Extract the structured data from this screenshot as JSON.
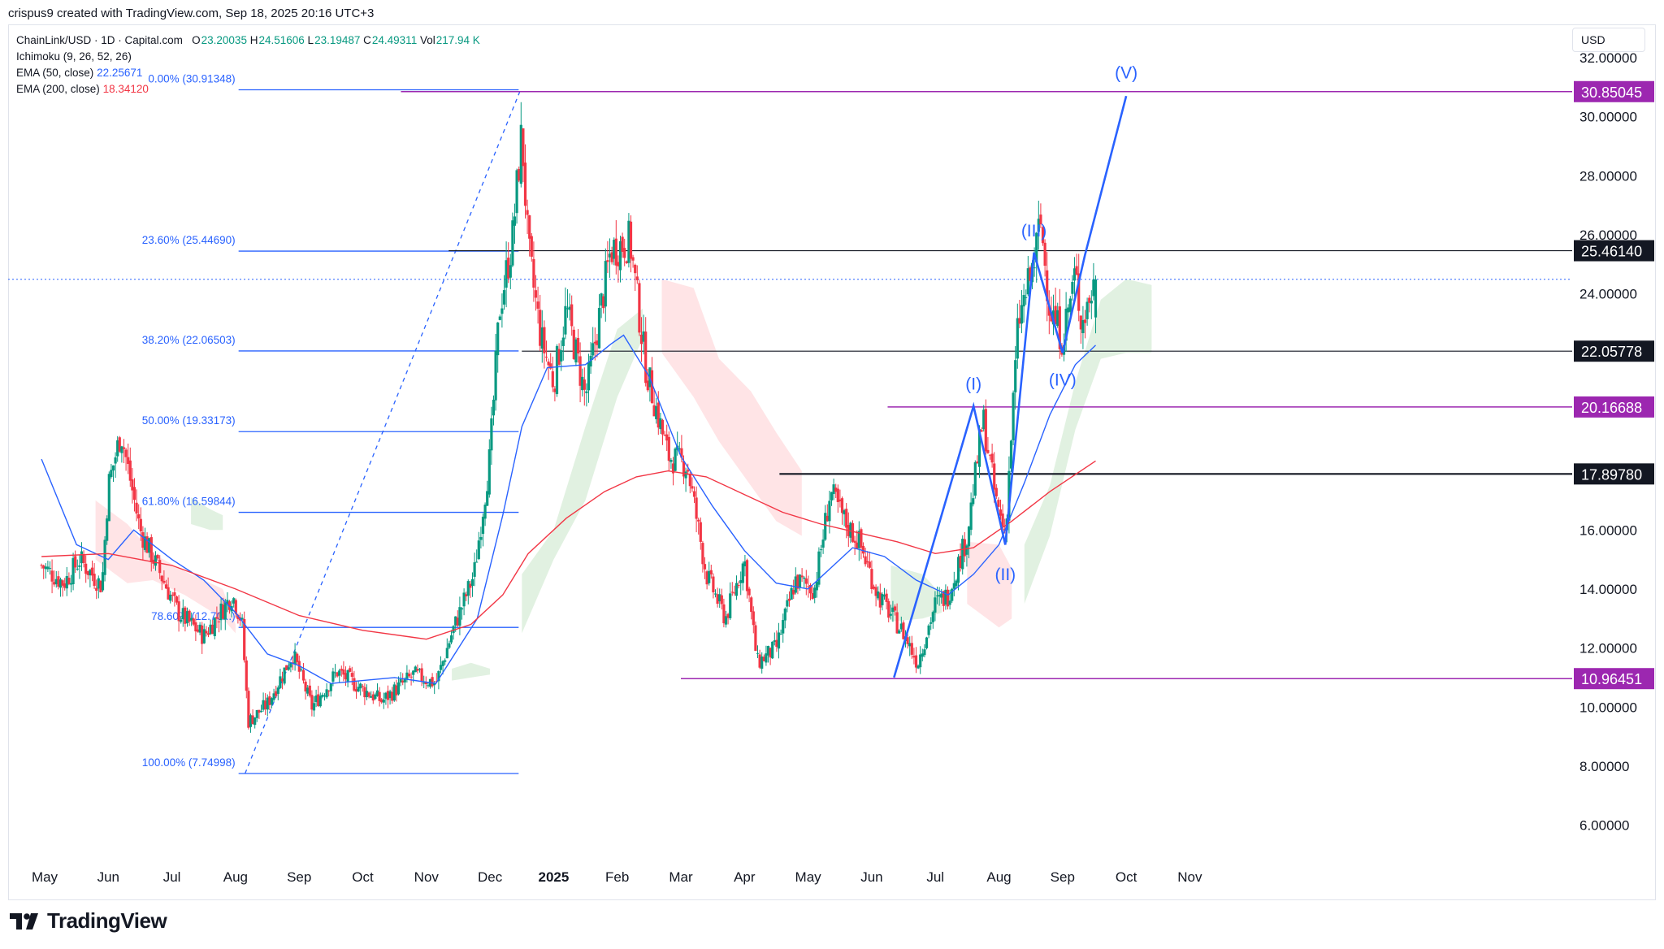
{
  "caption": "crispus9 created with TradingView.com, Sep 18, 2025 20:16 UTC+3",
  "brand": "TradingView",
  "legend": {
    "symbol": "ChainLink/USD · 1D · Capital.com",
    "o_label": "O",
    "o": "23.20035",
    "h_label": "H",
    "h": "24.51606",
    "l_label": "L",
    "l": "23.19487",
    "c_label": "C",
    "c": "24.49311",
    "vol_label": "Vol",
    "vol": "217.94 K",
    "ichimoku": "Ichimoku (9, 26, 52, 26)",
    "ema50_label": "EMA (50, close)",
    "ema50": "22.25671",
    "ema200_label": "EMA (200, close)",
    "ema200": "18.34120"
  },
  "currency": "USD",
  "colors": {
    "up": "#089981",
    "down": "#f23645",
    "ema50": "#2962ff",
    "ema200": "#f23645",
    "fib": "#2962ff",
    "hline": "#131722",
    "support": "#9c27b0",
    "wave": "#2962ff",
    "cloud_bull": "#c8e6c9",
    "cloud_bear": "#ffcdd2"
  },
  "chart_data": {
    "type": "candlestick",
    "instrument": "ChainLink/USD",
    "timeframe": "1D",
    "x_labels": [
      "May",
      "Jun",
      "Jul",
      "Aug",
      "Sep",
      "Oct",
      "Nov",
      "Dec",
      "2025",
      "Feb",
      "Mar",
      "Apr",
      "May",
      "Jun",
      "Jul",
      "Aug",
      "Sep",
      "Oct",
      "Nov"
    ],
    "y_ticks": [
      "32.00000",
      "30.00000",
      "28.00000",
      "26.00000",
      "24.00000",
      "22.00000",
      "20.00000",
      "18.00000",
      "16.00000",
      "14.00000",
      "12.00000",
      "10.00000",
      "8.00000",
      "6.00000"
    ],
    "ylim": [
      5.2,
      33.6
    ],
    "close_path": [
      [
        -0.05,
        14.8
      ],
      [
        0.3,
        14.2
      ],
      [
        0.55,
        15.0
      ],
      [
        0.9,
        14.1
      ],
      [
        1.0,
        17.5
      ],
      [
        1.2,
        19.3
      ],
      [
        1.5,
        16.0
      ],
      [
        1.8,
        14.6
      ],
      [
        2.1,
        13.2
      ],
      [
        2.5,
        12.4
      ],
      [
        2.95,
        13.8
      ],
      [
        3.1,
        12.9
      ],
      [
        3.2,
        9.5
      ],
      [
        3.5,
        10.1
      ],
      [
        3.9,
        11.8
      ],
      [
        4.2,
        10.0
      ],
      [
        4.6,
        11.2
      ],
      [
        5.0,
        10.6
      ],
      [
        5.3,
        10.2
      ],
      [
        5.8,
        11.1
      ],
      [
        6.15,
        10.8
      ],
      [
        6.4,
        12.5
      ],
      [
        6.75,
        14.5
      ],
      [
        7.0,
        18.5
      ],
      [
        7.15,
        23.5
      ],
      [
        7.35,
        25.8
      ],
      [
        7.5,
        29.5
      ],
      [
        7.6,
        25.5
      ],
      [
        7.8,
        22.5
      ],
      [
        8.0,
        21.0
      ],
      [
        8.2,
        23.5
      ],
      [
        8.5,
        20.5
      ],
      [
        8.9,
        25.5
      ],
      [
        9.2,
        25.8
      ],
      [
        9.45,
        21.5
      ],
      [
        9.8,
        18.5
      ],
      [
        10.1,
        18.2
      ],
      [
        10.4,
        14.5
      ],
      [
        10.7,
        13.0
      ],
      [
        11.0,
        15.0
      ],
      [
        11.2,
        11.5
      ],
      [
        11.5,
        12.0
      ],
      [
        11.8,
        14.3
      ],
      [
        12.1,
        14.0
      ],
      [
        12.35,
        17.3
      ],
      [
        12.6,
        16.2
      ],
      [
        12.8,
        15.6
      ],
      [
        13.1,
        13.8
      ],
      [
        13.5,
        12.5
      ],
      [
        13.72,
        11.5
      ],
      [
        14.0,
        13.5
      ],
      [
        14.2,
        13.8
      ],
      [
        14.5,
        15.8
      ],
      [
        14.75,
        19.8
      ],
      [
        14.95,
        17.0
      ],
      [
        15.1,
        15.9
      ],
      [
        15.3,
        23.0
      ],
      [
        15.55,
        25.0
      ],
      [
        15.65,
        26.5
      ],
      [
        15.8,
        23.5
      ],
      [
        16.0,
        22.5
      ],
      [
        16.2,
        24.7
      ],
      [
        16.3,
        23.0
      ],
      [
        16.52,
        24.49
      ]
    ],
    "ema50_path": [
      [
        -0.05,
        18.4
      ],
      [
        0.5,
        15.5
      ],
      [
        1.0,
        15.0
      ],
      [
        1.4,
        16.0
      ],
      [
        2.0,
        15.0
      ],
      [
        2.5,
        14.3
      ],
      [
        3.0,
        13.2
      ],
      [
        3.5,
        11.8
      ],
      [
        4.0,
        11.4
      ],
      [
        4.5,
        10.8
      ],
      [
        5.0,
        10.9
      ],
      [
        5.5,
        11.0
      ],
      [
        6.15,
        10.8
      ],
      [
        6.8,
        13.0
      ],
      [
        7.2,
        16.5
      ],
      [
        7.5,
        19.5
      ],
      [
        7.9,
        21.5
      ],
      [
        8.5,
        21.6
      ],
      [
        8.9,
        22.3
      ],
      [
        9.1,
        22.6
      ],
      [
        9.5,
        21.2
      ],
      [
        10.0,
        18.5
      ],
      [
        10.5,
        16.8
      ],
      [
        11.0,
        15.3
      ],
      [
        11.5,
        14.2
      ],
      [
        12.0,
        14.0
      ],
      [
        12.3,
        14.6
      ],
      [
        12.7,
        15.4
      ],
      [
        13.2,
        15.1
      ],
      [
        13.7,
        14.3
      ],
      [
        14.2,
        13.8
      ],
      [
        14.6,
        14.5
      ],
      [
        15.0,
        15.5
      ],
      [
        15.4,
        17.6
      ],
      [
        15.8,
        19.9
      ],
      [
        16.2,
        21.6
      ],
      [
        16.52,
        22.26
      ]
    ],
    "ema200_path": [
      [
        -0.05,
        15.1
      ],
      [
        1.0,
        15.2
      ],
      [
        2.0,
        14.8
      ],
      [
        3.0,
        14.0
      ],
      [
        4.0,
        13.1
      ],
      [
        5.0,
        12.6
      ],
      [
        6.0,
        12.3
      ],
      [
        6.7,
        12.8
      ],
      [
        7.2,
        13.8
      ],
      [
        7.6,
        15.2
      ],
      [
        8.2,
        16.4
      ],
      [
        8.8,
        17.3
      ],
      [
        9.3,
        17.8
      ],
      [
        9.8,
        18.0
      ],
      [
        10.4,
        17.8
      ],
      [
        11.0,
        17.2
      ],
      [
        11.6,
        16.6
      ],
      [
        12.2,
        16.2
      ],
      [
        12.8,
        15.9
      ],
      [
        13.4,
        15.6
      ],
      [
        14.0,
        15.2
      ],
      [
        14.6,
        15.4
      ],
      [
        15.2,
        16.3
      ],
      [
        15.8,
        17.3
      ],
      [
        16.52,
        18.34
      ]
    ],
    "fibonacci": [
      {
        "label": "0.00% (30.91348)",
        "value": 30.91348
      },
      {
        "label": "23.60% (25.44690)",
        "value": 25.4469
      },
      {
        "label": "38.20% (22.06503)",
        "value": 22.06503
      },
      {
        "label": "50.00% (19.33173)",
        "value": 19.33173
      },
      {
        "label": "61.80% (16.59844)",
        "value": 16.59844
      },
      {
        "label": "78.60% (12.70...)",
        "value": 12.7
      },
      {
        "label": "100.00% (7.74998)",
        "value": 7.74998
      }
    ],
    "fib_x_range": [
      3.15,
      7.45
    ],
    "black_levels": [
      {
        "label": "25.46140",
        "value": 25.4614,
        "x_start": 6.35
      },
      {
        "label": "22.05778",
        "value": 22.05778,
        "x_start": 7.5
      },
      {
        "label": "17.89780",
        "value": 17.8978,
        "x_start": 11.55
      }
    ],
    "purple_levels": [
      {
        "label": "30.85045",
        "value": 30.85045,
        "x_start": 5.6
      },
      {
        "label": "20.16688",
        "value": 20.16688,
        "x_start": 13.25
      },
      {
        "label": "10.96451",
        "value": 10.96451,
        "x_start": 10.0
      }
    ],
    "current_price_line": 24.49311,
    "elliott_wave": {
      "points": [
        [
          13.35,
          11.0
        ],
        [
          14.6,
          20.2
        ],
        [
          15.1,
          15.5
        ],
        [
          15.55,
          25.4
        ],
        [
          16.0,
          22.0
        ],
        [
          16.35,
          25.3
        ],
        [
          17.0,
          30.7
        ]
      ],
      "labels": [
        {
          "text": "(I)",
          "x": 14.6,
          "y": 20.75
        },
        {
          "text": "(II)",
          "x": 15.1,
          "y": 14.3
        },
        {
          "text": "(III)",
          "x": 15.55,
          "y": 25.95
        },
        {
          "text": "(IV)",
          "x": 16.0,
          "y": 20.9
        },
        {
          "text": "(V)",
          "x": 17.0,
          "y": 31.3
        }
      ]
    },
    "ichimoku_clouds": [
      {
        "color": "bear",
        "top": [
          [
            0.8,
            17.0
          ],
          [
            1.3,
            16.2
          ],
          [
            1.7,
            15.2
          ],
          [
            2.2,
            14.6
          ],
          [
            2.8,
            14.0
          ],
          [
            3.0,
            12.8
          ]
        ],
        "bottom": [
          [
            0.8,
            15.0
          ],
          [
            1.3,
            14.2
          ],
          [
            1.7,
            14.3
          ],
          [
            2.2,
            13.8
          ],
          [
            2.8,
            13.0
          ],
          [
            3.0,
            12.5
          ]
        ]
      },
      {
        "color": "bull",
        "top": [
          [
            2.3,
            17.1
          ],
          [
            2.6,
            16.7
          ],
          [
            2.8,
            16.5
          ]
        ],
        "bottom": [
          [
            2.3,
            16.2
          ],
          [
            2.6,
            16.0
          ],
          [
            2.8,
            16.0
          ]
        ]
      },
      {
        "color": "bull",
        "top": [
          [
            6.4,
            11.3
          ],
          [
            6.7,
            11.5
          ],
          [
            7.0,
            11.3
          ]
        ],
        "bottom": [
          [
            6.4,
            10.9
          ],
          [
            6.7,
            11.0
          ],
          [
            7.0,
            11.1
          ]
        ]
      },
      {
        "color": "bull",
        "top": [
          [
            7.5,
            14.5
          ],
          [
            8.0,
            16.0
          ],
          [
            8.5,
            19.5
          ],
          [
            9.0,
            22.8
          ],
          [
            9.4,
            23.5
          ]
        ],
        "bottom": [
          [
            7.5,
            12.5
          ],
          [
            8.0,
            15.0
          ],
          [
            8.5,
            17.0
          ],
          [
            9.0,
            20.5
          ],
          [
            9.4,
            22.5
          ]
        ]
      },
      {
        "color": "bear",
        "top": [
          [
            9.7,
            24.5
          ],
          [
            10.2,
            24.2
          ],
          [
            10.6,
            21.8
          ],
          [
            11.1,
            20.7
          ],
          [
            11.5,
            19.3
          ],
          [
            11.9,
            18.0
          ]
        ],
        "bottom": [
          [
            9.7,
            22.0
          ],
          [
            10.2,
            20.5
          ],
          [
            10.6,
            19.0
          ],
          [
            11.1,
            17.5
          ],
          [
            11.5,
            16.3
          ],
          [
            11.9,
            15.8
          ]
        ]
      },
      {
        "color": "bull",
        "top": [
          [
            13.3,
            14.8
          ],
          [
            13.8,
            14.5
          ],
          [
            14.1,
            13.8
          ]
        ],
        "bottom": [
          [
            13.3,
            12.9
          ],
          [
            13.8,
            13.0
          ],
          [
            14.1,
            13.2
          ]
        ]
      },
      {
        "color": "bear",
        "top": [
          [
            14.5,
            15.6
          ],
          [
            15.0,
            15.5
          ],
          [
            15.2,
            14.7
          ]
        ],
        "bottom": [
          [
            14.5,
            13.5
          ],
          [
            15.0,
            12.7
          ],
          [
            15.2,
            13.0
          ]
        ]
      },
      {
        "color": "bull",
        "top": [
          [
            15.4,
            15.5
          ],
          [
            15.8,
            17.5
          ],
          [
            16.2,
            21.0
          ],
          [
            16.6,
            23.8
          ],
          [
            17.0,
            24.5
          ],
          [
            17.4,
            24.3
          ]
        ],
        "bottom": [
          [
            15.4,
            13.5
          ],
          [
            15.8,
            15.8
          ],
          [
            16.2,
            19.4
          ],
          [
            16.6,
            21.8
          ],
          [
            17.0,
            22.0
          ],
          [
            17.4,
            22.0
          ]
        ]
      }
    ]
  }
}
